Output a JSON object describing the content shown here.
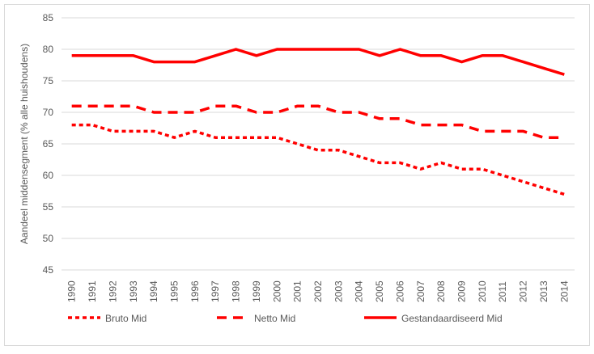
{
  "chart_data": {
    "type": "line",
    "title": "",
    "xlabel": "",
    "ylabel": "Aandeel middensegment (% alle huishoudens)",
    "ylim": [
      45,
      85
    ],
    "yticks": [
      45,
      50,
      55,
      60,
      65,
      70,
      75,
      80,
      85
    ],
    "grid": true,
    "legend": "bottom",
    "color": "#ff0000",
    "categories": [
      "1990",
      "1991",
      "1992",
      "1993",
      "1994",
      "1995",
      "1996",
      "1997",
      "1998",
      "1999",
      "2000",
      "2001",
      "2002",
      "2003",
      "2004",
      "2005",
      "2006",
      "2007",
      "2008",
      "2009",
      "2010",
      "2011",
      "2012",
      "2013",
      "2014"
    ],
    "series": [
      {
        "name": "Bruto Mid",
        "style": "dotted",
        "values": [
          68,
          68,
          67,
          67,
          67,
          66,
          67,
          66,
          66,
          66,
          66,
          65,
          64,
          64,
          63,
          62,
          62,
          61,
          62,
          61,
          61,
          60,
          59,
          58,
          57
        ]
      },
      {
        "name": "Netto Mid",
        "style": "dashed",
        "values": [
          71,
          71,
          71,
          71,
          70,
          70,
          70,
          71,
          71,
          70,
          70,
          71,
          71,
          70,
          70,
          69,
          69,
          68,
          68,
          68,
          67,
          67,
          67,
          66,
          66
        ]
      },
      {
        "name": "Gestandaardiseerd Mid",
        "style": "solid",
        "values": [
          79,
          79,
          79,
          79,
          78,
          78,
          78,
          79,
          80,
          79,
          80,
          80,
          80,
          80,
          80,
          79,
          80,
          79,
          79,
          78,
          79,
          79,
          78,
          77,
          76
        ]
      }
    ]
  }
}
